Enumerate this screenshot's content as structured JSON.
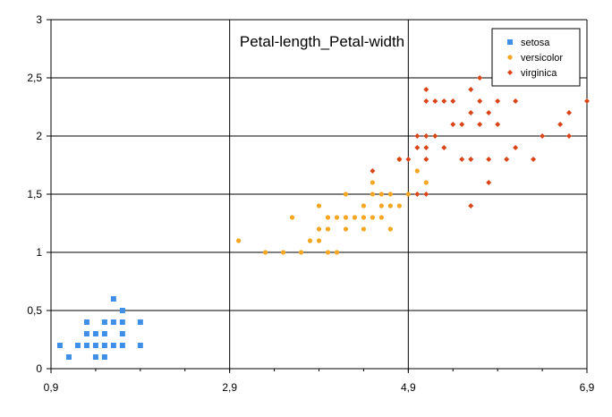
{
  "chart_data": {
    "type": "scatter",
    "title": "Petal-length_Petal-width",
    "xlabel": "",
    "ylabel": "",
    "xlim": [
      0.9,
      6.9
    ],
    "ylim": [
      0,
      3
    ],
    "x_ticks": [
      "0,9",
      "2,9",
      "4,9",
      "6,9"
    ],
    "x_tick_values": [
      0.9,
      2.9,
      4.9,
      6.9
    ],
    "y_ticks": [
      "0",
      "0,5",
      "1",
      "1,5",
      "2",
      "2,5",
      "3"
    ],
    "y_tick_values": [
      0,
      0.5,
      1,
      1.5,
      2,
      2.5,
      3
    ],
    "grid": true,
    "legend_position": "top-right",
    "series": [
      {
        "name": "setosa",
        "marker": "square",
        "color": "#3f8fe8",
        "points": [
          [
            1.0,
            0.2
          ],
          [
            1.1,
            0.1
          ],
          [
            1.2,
            0.2
          ],
          [
            1.3,
            0.2
          ],
          [
            1.3,
            0.3
          ],
          [
            1.3,
            0.4
          ],
          [
            1.4,
            0.1
          ],
          [
            1.4,
            0.2
          ],
          [
            1.4,
            0.3
          ],
          [
            1.5,
            0.1
          ],
          [
            1.5,
            0.2
          ],
          [
            1.5,
            0.3
          ],
          [
            1.5,
            0.4
          ],
          [
            1.6,
            0.2
          ],
          [
            1.6,
            0.4
          ],
          [
            1.6,
            0.6
          ],
          [
            1.7,
            0.2
          ],
          [
            1.7,
            0.3
          ],
          [
            1.7,
            0.4
          ],
          [
            1.7,
            0.5
          ],
          [
            1.9,
            0.2
          ],
          [
            1.9,
            0.4
          ]
        ]
      },
      {
        "name": "versicolor",
        "marker": "circle",
        "color": "#f5a623",
        "points": [
          [
            3.0,
            1.1
          ],
          [
            3.3,
            1.0
          ],
          [
            3.5,
            1.0
          ],
          [
            3.6,
            1.3
          ],
          [
            3.7,
            1.0
          ],
          [
            3.8,
            1.1
          ],
          [
            3.9,
            1.1
          ],
          [
            3.9,
            1.2
          ],
          [
            3.9,
            1.4
          ],
          [
            4.0,
            1.0
          ],
          [
            4.0,
            1.2
          ],
          [
            4.0,
            1.3
          ],
          [
            4.1,
            1.0
          ],
          [
            4.1,
            1.3
          ],
          [
            4.2,
            1.2
          ],
          [
            4.2,
            1.3
          ],
          [
            4.2,
            1.5
          ],
          [
            4.3,
            1.3
          ],
          [
            4.4,
            1.2
          ],
          [
            4.4,
            1.3
          ],
          [
            4.4,
            1.4
          ],
          [
            4.5,
            1.3
          ],
          [
            4.5,
            1.5
          ],
          [
            4.5,
            1.6
          ],
          [
            4.6,
            1.3
          ],
          [
            4.6,
            1.4
          ],
          [
            4.6,
            1.5
          ],
          [
            4.7,
            1.2
          ],
          [
            4.7,
            1.4
          ],
          [
            4.7,
            1.5
          ],
          [
            4.8,
            1.4
          ],
          [
            4.8,
            1.8
          ],
          [
            4.9,
            1.5
          ],
          [
            5.0,
            1.7
          ],
          [
            5.1,
            1.6
          ]
        ]
      },
      {
        "name": "virginica",
        "marker": "diamond",
        "color": "#d94418",
        "points": [
          [
            4.5,
            1.7
          ],
          [
            4.8,
            1.8
          ],
          [
            4.9,
            1.8
          ],
          [
            5.0,
            1.5
          ],
          [
            5.0,
            1.9
          ],
          [
            5.0,
            2.0
          ],
          [
            5.1,
            1.5
          ],
          [
            5.1,
            1.8
          ],
          [
            5.1,
            1.9
          ],
          [
            5.1,
            2.0
          ],
          [
            5.1,
            2.3
          ],
          [
            5.1,
            2.4
          ],
          [
            5.2,
            2.0
          ],
          [
            5.2,
            2.3
          ],
          [
            5.3,
            1.9
          ],
          [
            5.3,
            2.3
          ],
          [
            5.4,
            2.1
          ],
          [
            5.4,
            2.3
          ],
          [
            5.5,
            1.8
          ],
          [
            5.5,
            2.1
          ],
          [
            5.6,
            1.4
          ],
          [
            5.6,
            1.8
          ],
          [
            5.6,
            2.2
          ],
          [
            5.6,
            2.4
          ],
          [
            5.7,
            2.1
          ],
          [
            5.7,
            2.3
          ],
          [
            5.7,
            2.5
          ],
          [
            5.8,
            1.6
          ],
          [
            5.8,
            1.8
          ],
          [
            5.8,
            2.2
          ],
          [
            5.9,
            2.1
          ],
          [
            5.9,
            2.3
          ],
          [
            6.0,
            1.8
          ],
          [
            6.0,
            2.5
          ],
          [
            6.1,
            1.9
          ],
          [
            6.1,
            2.3
          ],
          [
            6.3,
            1.8
          ],
          [
            6.4,
            2.0
          ],
          [
            6.6,
            2.1
          ],
          [
            6.7,
            2.0
          ],
          [
            6.7,
            2.2
          ],
          [
            6.9,
            2.3
          ]
        ]
      }
    ]
  }
}
